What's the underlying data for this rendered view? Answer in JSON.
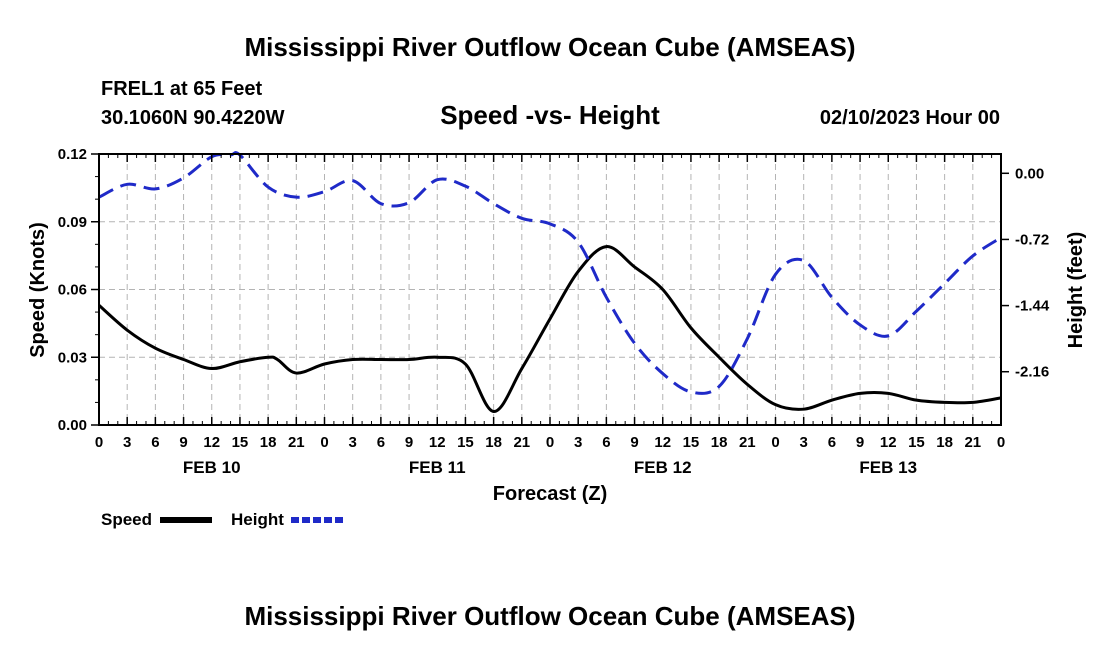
{
  "header": {
    "title": "Mississippi River Outflow Ocean Cube (AMSEAS)",
    "station": "FREL1 at 65 Feet",
    "coords": "30.1060N  90.4220W",
    "subtitle": "Speed -vs- Height",
    "date": "02/10/2023 Hour 00"
  },
  "footer": {
    "title": "Mississippi River Outflow Ocean Cube (AMSEAS)"
  },
  "chart_data": {
    "type": "line",
    "title": "Speed -vs- Height",
    "xlabel": "Forecast (Z)",
    "ylabel_left": "Speed (Knots)",
    "ylabel_right": "Height (feet)",
    "x_unit": "hours",
    "xlim": [
      0,
      96
    ],
    "ylim_left": [
      0,
      0.12
    ],
    "ylim_right": [
      -2.74,
      0.21
    ],
    "x_ticks": [
      0,
      3,
      6,
      9,
      12,
      15,
      18,
      21,
      24,
      27,
      30,
      33,
      36,
      39,
      42,
      45,
      48,
      51,
      54,
      57,
      60,
      63,
      66,
      69,
      72,
      75,
      78,
      81,
      84,
      87,
      90,
      93,
      96
    ],
    "x_tick_labels": [
      "0",
      "3",
      "6",
      "9",
      "12",
      "15",
      "18",
      "21",
      "0",
      "3",
      "6",
      "9",
      "12",
      "15",
      "18",
      "21",
      "0",
      "3",
      "6",
      "9",
      "12",
      "15",
      "18",
      "21",
      "0",
      "3",
      "6",
      "9",
      "12",
      "15",
      "18",
      "21",
      "0"
    ],
    "left_ticks": [
      0.0,
      0.03,
      0.06,
      0.09,
      0.12
    ],
    "left_tick_labels": [
      "0.00",
      "0.03",
      "0.06",
      "0.09",
      "0.12"
    ],
    "right_ticks": [
      0.0,
      -0.72,
      -1.44,
      -2.16
    ],
    "right_tick_labels": [
      "0.00",
      "-0.72",
      "-1.44",
      "-2.16"
    ],
    "day_labels": [
      {
        "x": 12,
        "label": "FEB 10"
      },
      {
        "x": 36,
        "label": "FEB 11"
      },
      {
        "x": 60,
        "label": "FEB 12"
      },
      {
        "x": 84,
        "label": "FEB 13"
      }
    ],
    "grid": true,
    "series": [
      {
        "name": "Speed",
        "axis": "left",
        "color": "#000000",
        "style": "solid",
        "x": [
          0,
          3,
          6,
          9,
          12,
          15,
          18,
          19,
          21,
          24,
          27,
          30,
          33,
          36,
          39,
          42,
          45,
          48,
          51,
          54,
          57,
          60,
          63,
          66,
          69,
          72,
          75,
          78,
          81,
          84,
          87,
          90,
          93,
          96
        ],
        "y": [
          0.053,
          0.042,
          0.034,
          0.029,
          0.025,
          0.028,
          0.03,
          0.029,
          0.023,
          0.027,
          0.029,
          0.029,
          0.029,
          0.03,
          0.027,
          0.006,
          0.025,
          0.047,
          0.068,
          0.079,
          0.07,
          0.06,
          0.043,
          0.03,
          0.018,
          0.009,
          0.007,
          0.011,
          0.014,
          0.014,
          0.011,
          0.01,
          0.01,
          0.012
        ]
      },
      {
        "name": "Height",
        "axis": "right",
        "color": "#1f2ac8",
        "style": "dashed",
        "x": [
          0,
          3,
          6,
          9,
          12,
          14,
          15,
          18,
          21,
          24,
          27,
          30,
          33,
          36,
          39,
          42,
          45,
          48,
          51,
          54,
          57,
          60,
          63,
          66,
          69,
          72,
          75,
          78,
          81,
          84,
          87,
          90,
          93,
          96
        ],
        "y": [
          -0.26,
          -0.12,
          -0.17,
          -0.05,
          0.18,
          0.28,
          0.25,
          -0.15,
          -0.26,
          -0.2,
          -0.08,
          -0.33,
          -0.32,
          -0.07,
          -0.14,
          -0.33,
          -0.49,
          -0.55,
          -0.75,
          -1.35,
          -1.85,
          -2.18,
          -2.38,
          -2.32,
          -1.8,
          -1.1,
          -0.95,
          -1.35,
          -1.65,
          -1.77,
          -1.5,
          -1.2,
          -0.9,
          -0.7
        ]
      }
    ]
  },
  "legend": {
    "speed_label": "Speed",
    "height_label": "Height",
    "speed_color": "#000000",
    "height_color": "#1f2ac8"
  }
}
